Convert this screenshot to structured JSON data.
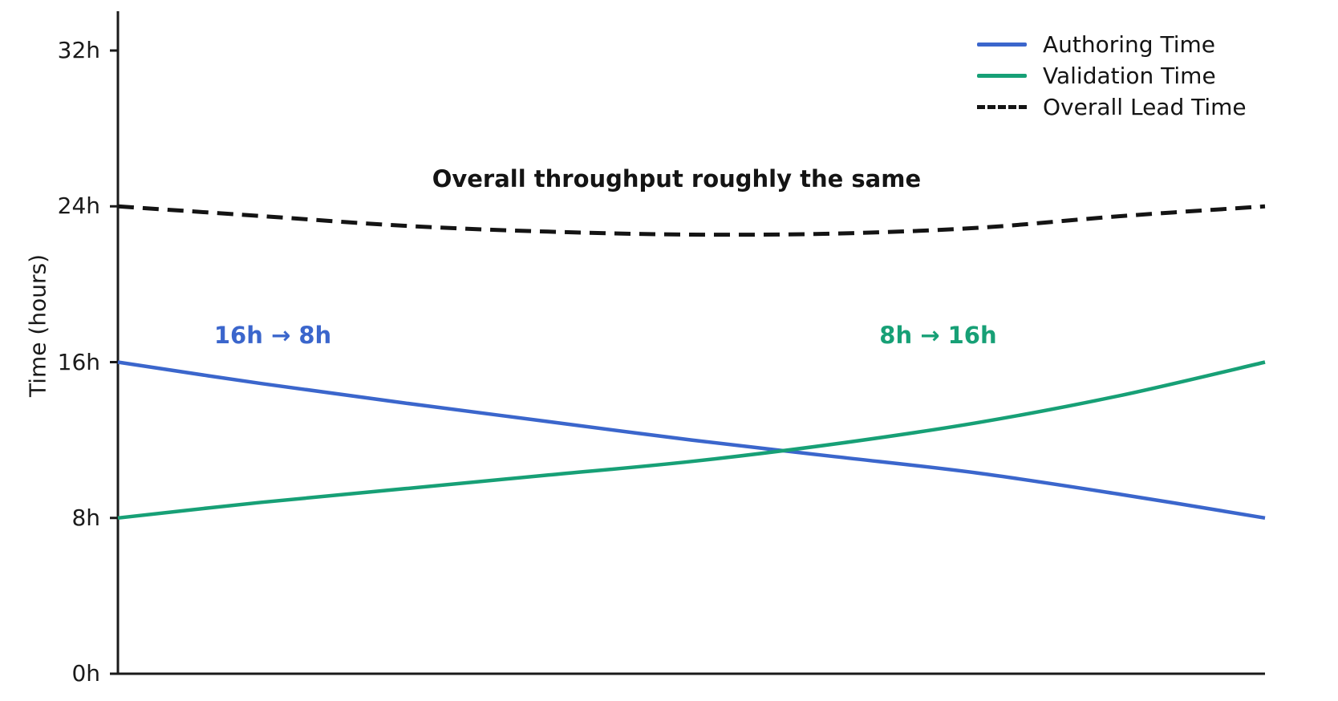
{
  "chart_data": {
    "type": "line",
    "title": "",
    "xlabel": "",
    "ylabel": "Time (hours)",
    "ylim": [
      0,
      34
    ],
    "grid": false,
    "legend_position": "upper right",
    "x_axis_ticks_visible": false,
    "yticks": [
      {
        "label": "0h",
        "value": 0
      },
      {
        "label": "8h",
        "value": 8
      },
      {
        "label": "16h",
        "value": 16
      },
      {
        "label": "24h",
        "value": 24
      },
      {
        "label": "32h",
        "value": 32
      }
    ],
    "x": [
      0,
      0.125,
      0.25,
      0.375,
      0.5,
      0.625,
      0.75,
      0.875,
      1
    ],
    "series": [
      {
        "name": "Authoring Time",
        "color": "#3B66CC",
        "style": "solid",
        "width": 4.5,
        "values": [
          16,
          14.9,
          13.9,
          12.95,
          12.0,
          11.15,
          10.3,
          9.2,
          8
        ]
      },
      {
        "name": "Validation Time",
        "color": "#17A076",
        "style": "solid",
        "width": 4.5,
        "values": [
          8,
          8.8,
          9.5,
          10.2,
          10.9,
          11.8,
          12.9,
          14.3,
          16
        ]
      },
      {
        "name": "Overall Lead Time",
        "color": "#141414",
        "style": "dashed",
        "width": 5,
        "values": [
          24,
          23.5,
          23.0,
          22.7,
          22.55,
          22.6,
          22.9,
          23.5,
          24
        ]
      }
    ],
    "annotations": [
      {
        "text": "Overall throughput roughly the same",
        "color": "#141414",
        "x": 0.487,
        "y_hours": 25.4
      },
      {
        "text": "16h → 8h",
        "color": "#3B66CC",
        "x": 0.135,
        "y_hours": 17.4
      },
      {
        "text": "8h → 16h",
        "color": "#17A076",
        "x": 0.715,
        "y_hours": 17.4
      }
    ],
    "axis_color": "#1a1a1a"
  }
}
